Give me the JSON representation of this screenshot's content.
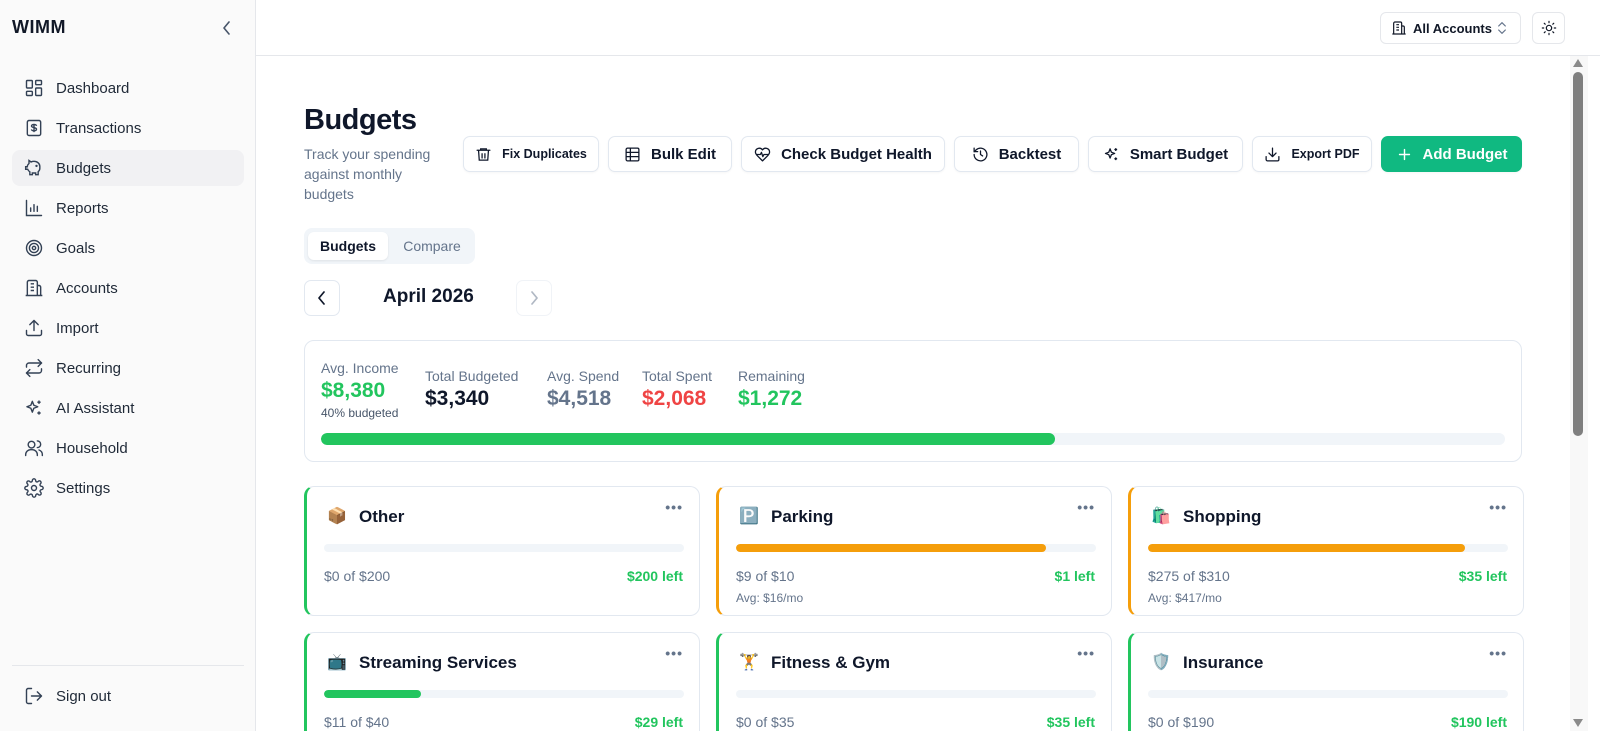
{
  "app": {
    "brand": "WIMM"
  },
  "sidebar": {
    "items": [
      {
        "label": "Dashboard",
        "icon": "layout-dashboard-icon"
      },
      {
        "label": "Transactions",
        "icon": "dollar-receipt-icon"
      },
      {
        "label": "Budgets",
        "icon": "piggy-bank-icon",
        "active": true
      },
      {
        "label": "Reports",
        "icon": "bar-chart-icon"
      },
      {
        "label": "Goals",
        "icon": "target-icon"
      },
      {
        "label": "Accounts",
        "icon": "building-icon"
      },
      {
        "label": "Import",
        "icon": "upload-icon"
      },
      {
        "label": "Recurring",
        "icon": "repeat-icon"
      },
      {
        "label": "AI Assistant",
        "icon": "sparkles-icon"
      },
      {
        "label": "Household",
        "icon": "users-icon"
      },
      {
        "label": "Settings",
        "icon": "gear-icon"
      }
    ],
    "signout": "Sign out"
  },
  "topbar": {
    "account_selector": "All Accounts"
  },
  "page": {
    "title": "Budgets",
    "subtitle": "Track your spending against monthly budgets"
  },
  "toolbar": {
    "fix_duplicates": "Fix Duplicates",
    "bulk_edit": "Bulk Edit",
    "check_health": "Check Budget Health",
    "backtest": "Backtest",
    "smart_budget": "Smart Budget",
    "export_pdf": "Export PDF",
    "add_budget": "Add Budget"
  },
  "tabs": {
    "budgets": "Budgets",
    "compare": "Compare"
  },
  "month": {
    "label": "April 2026"
  },
  "summary": {
    "avg_income_label": "Avg. Income",
    "avg_income": "$8,380",
    "budgeted_note": "40% budgeted",
    "total_budgeted_label": "Total Budgeted",
    "total_budgeted": "$3,340",
    "avg_spend_label": "Avg. Spend",
    "avg_spend": "$4,518",
    "total_spent_label": "Total Spent",
    "total_spent": "$2,068",
    "remaining_label": "Remaining",
    "remaining": "$1,272",
    "progress_pct": 62
  },
  "colors": {
    "accent": "#10b981",
    "green": "#22c55e",
    "orange": "#f59e0b",
    "red": "#ef4444",
    "slate": "#64748b"
  },
  "budgets": [
    {
      "emoji": "📦",
      "name": "Other",
      "spent": "$0 of $200",
      "left": "$200 left",
      "avg": "",
      "pct": 0,
      "status": "green"
    },
    {
      "emoji": "🅿️",
      "name": "Parking",
      "spent": "$9 of $10",
      "left": "$1 left",
      "avg": "Avg: $16/mo",
      "pct": 86,
      "status": "orange"
    },
    {
      "emoji": "🛍️",
      "name": "Shopping",
      "spent": "$275 of $310",
      "left": "$35 left",
      "avg": "Avg: $417/mo",
      "pct": 88,
      "status": "orange"
    },
    {
      "emoji": "📺",
      "name": "Streaming Services",
      "spent": "$11 of $40",
      "left": "$29 left",
      "avg": "",
      "pct": 27,
      "status": "green"
    },
    {
      "emoji": "🏋️",
      "name": "Fitness & Gym",
      "spent": "$0 of $35",
      "left": "$35 left",
      "avg": "",
      "pct": 0,
      "status": "green"
    },
    {
      "emoji": "🛡️",
      "name": "Insurance",
      "spent": "$0 of $190",
      "left": "$190 left",
      "avg": "",
      "pct": 0,
      "status": "green"
    }
  ]
}
